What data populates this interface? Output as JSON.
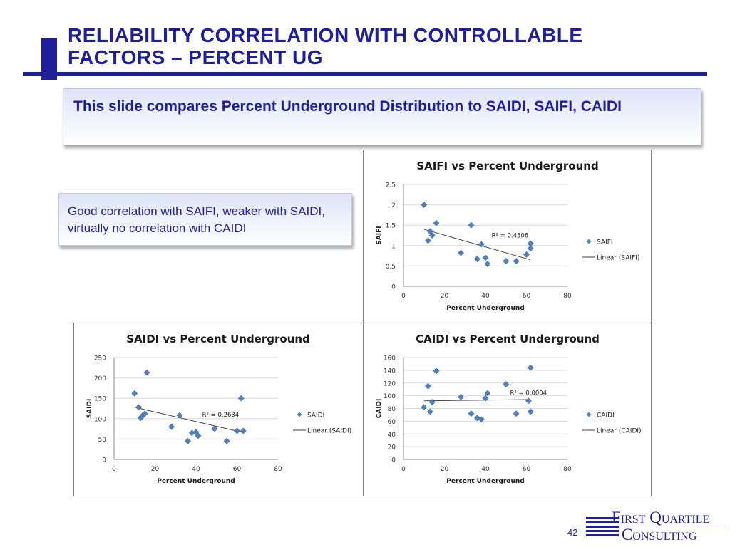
{
  "slide": {
    "title_line1": "Reliability Correlation with Controllable",
    "title_line2": "Factors – Percent UG",
    "summary": "This slide compares Percent Underground Distribution to SAIDI, SAIFI, CAIDI",
    "note": "Good correlation with SAIFI, weaker with SAIDI, virtually no correlation with CAIDI",
    "page_number": "42",
    "logo_line1": "First Quartile",
    "logo_line2": "Consulting"
  },
  "colors": {
    "title_blue": "#1f1f99",
    "marker_blue": "#4f81bd",
    "trend_line": "#404040",
    "grid": "#d9d9d9"
  },
  "chart_data": [
    {
      "id": "saifi",
      "type": "scatter",
      "title": "SAIFI vs Percent Underground",
      "xlabel": "Percent Underground",
      "ylabel": "SAIFI",
      "xlim": [
        0,
        80
      ],
      "ylim": [
        0,
        2.5
      ],
      "xticks": [
        0,
        20,
        40,
        60,
        80
      ],
      "yticks": [
        0,
        0.5,
        1,
        1.5,
        2,
        2.5
      ],
      "ytick_labels": [
        "0",
        "0.5",
        "1",
        "1.5",
        "2",
        "2.5"
      ],
      "grid": "horizontal",
      "legend": "right",
      "annotation": "R² = 0.4306",
      "series": [
        {
          "name": "SAIFI",
          "marker": "diamond",
          "x": [
            10,
            12,
            13,
            14,
            16,
            28,
            33,
            36,
            38,
            40,
            41,
            50,
            55,
            60,
            62,
            62
          ],
          "y": [
            2.0,
            1.12,
            1.35,
            1.25,
            1.55,
            0.82,
            1.5,
            0.67,
            1.03,
            0.7,
            0.55,
            0.62,
            0.62,
            0.78,
            1.05,
            0.93
          ]
        },
        {
          "name": "Linear (SAIFI)",
          "kind": "trendline",
          "x": [
            10,
            62
          ],
          "y": [
            1.4,
            0.65
          ]
        }
      ]
    },
    {
      "id": "saidi",
      "type": "scatter",
      "title": "SAIDI vs Percent Underground",
      "xlabel": "Percent Underground",
      "ylabel": "SAIDI",
      "xlim": [
        0,
        80
      ],
      "ylim": [
        0,
        250
      ],
      "xticks": [
        0,
        20,
        40,
        60,
        80
      ],
      "yticks": [
        0,
        50,
        100,
        150,
        200,
        250
      ],
      "ytick_labels": [
        "0",
        "50",
        "100",
        "150",
        "200",
        "250"
      ],
      "grid": "horizontal",
      "legend": "right",
      "annotation": "R² = 0.2634",
      "series": [
        {
          "name": "SAIDI",
          "marker": "diamond",
          "x": [
            10,
            12,
            13,
            14,
            15,
            16,
            28,
            32,
            36,
            38,
            40,
            41,
            49,
            55,
            60,
            62,
            63
          ],
          "y": [
            162,
            128,
            102,
            108,
            112,
            213,
            80,
            108,
            45,
            65,
            67,
            58,
            75,
            45,
            70,
            150,
            70
          ]
        },
        {
          "name": "Linear (SAIDI)",
          "kind": "trendline",
          "x": [
            10,
            63
          ],
          "y": [
            128,
            66
          ]
        }
      ]
    },
    {
      "id": "caidi",
      "type": "scatter",
      "title": "CAIDI vs Percent Underground",
      "xlabel": "Percent Underground",
      "ylabel": "CAIDI",
      "xlim": [
        0,
        80
      ],
      "ylim": [
        0,
        160
      ],
      "xticks": [
        0,
        20,
        40,
        60,
        80
      ],
      "yticks": [
        0,
        20,
        40,
        60,
        80,
        100,
        120,
        140,
        160
      ],
      "ytick_labels": [
        "0",
        "20",
        "40",
        "60",
        "80",
        "100",
        "120",
        "140",
        "160"
      ],
      "grid": "horizontal",
      "legend": "right",
      "annotation": "R² = 0.0004",
      "series": [
        {
          "name": "CAIDI",
          "marker": "diamond",
          "x": [
            10,
            12,
            13,
            14,
            16,
            28,
            33,
            36,
            38,
            40,
            41,
            50,
            55,
            61,
            62,
            62
          ],
          "y": [
            82,
            115,
            75,
            90,
            139,
            98,
            72,
            65,
            63,
            96,
            104,
            118,
            72,
            92,
            144,
            75
          ]
        },
        {
          "name": "Linear (CAIDI)",
          "kind": "trendline",
          "x": [
            10,
            62
          ],
          "y": [
            92,
            94
          ]
        }
      ]
    }
  ]
}
